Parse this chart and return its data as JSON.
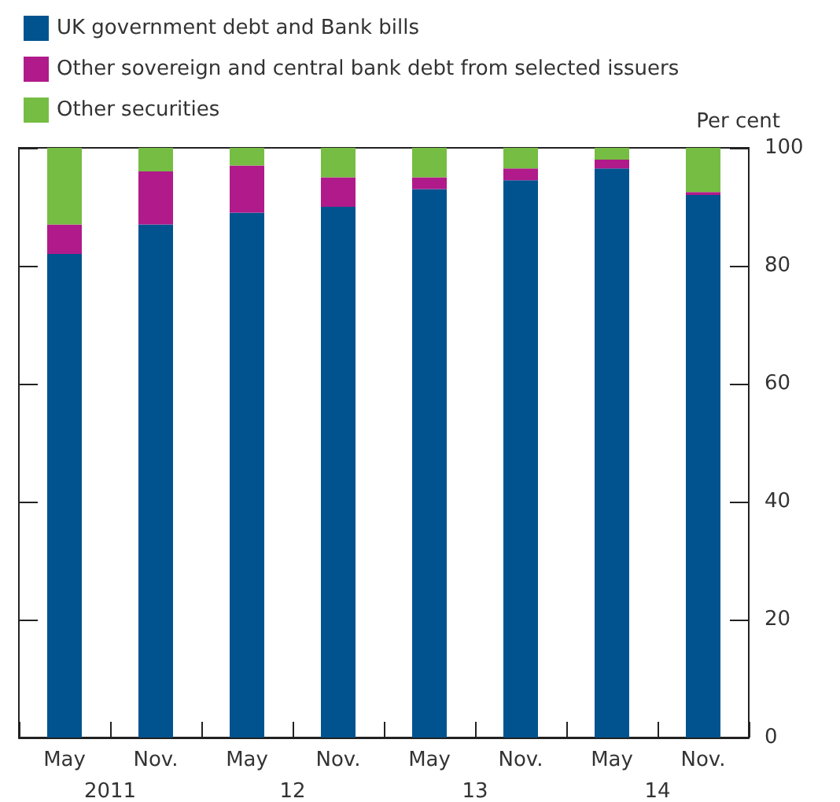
{
  "chart_data": {
    "type": "bar",
    "stacked": true,
    "ylabel": "Per cent",
    "categories": [
      "May",
      "Nov.",
      "May",
      "Nov.",
      "May",
      "Nov.",
      "May",
      "Nov."
    ],
    "series": [
      {
        "name": "UK government debt and Bank bills",
        "color": "#00538f",
        "values": [
          82,
          87,
          89,
          90,
          93,
          94.5,
          96.5,
          92
        ]
      },
      {
        "name": "Other sovereign and central bank debt from selected issuers",
        "color": "#b01a8a",
        "values": [
          5,
          9,
          8,
          5,
          2,
          2,
          1.5,
          0.5
        ]
      },
      {
        "name": "Other securities",
        "color": "#76bd43",
        "values": [
          13,
          4,
          3,
          5,
          5,
          3.5,
          2,
          7.5
        ]
      }
    ],
    "ylim": [
      0,
      100
    ],
    "yticks": [
      0,
      20,
      40,
      60,
      80,
      100
    ],
    "grid": false,
    "legend": "top left",
    "annotations": [
      "2011",
      "12",
      "13",
      "14"
    ]
  }
}
